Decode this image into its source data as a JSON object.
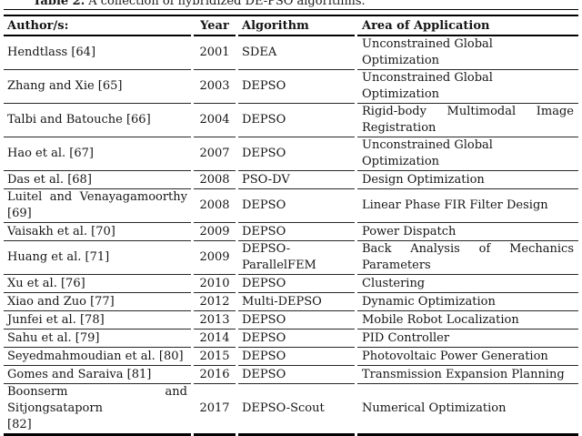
{
  "caption": {
    "label": "Table 2.",
    "text": "A collection of hybridized DE-PSO algorithms."
  },
  "table": {
    "headers": [
      "Author/s:",
      "Year",
      "Algorithm",
      "Area of Application"
    ],
    "rows": [
      {
        "author": [
          "Hendtlass [64]"
        ],
        "year": "2001",
        "algorithm": [
          "SDEA"
        ],
        "area": [
          "Unconstrained Global Optimization"
        ]
      },
      {
        "author": [
          "Zhang and Xie [65]"
        ],
        "year": "2003",
        "algorithm": [
          "DEPSO"
        ],
        "area": [
          "Unconstrained Global Optimization"
        ]
      },
      {
        "author": [
          "Talbi and Batouche [66]"
        ],
        "year": "2004",
        "algorithm": [
          "DEPSO"
        ],
        "area": [
          "Rigid-body Multimodal Image",
          "Registration"
        ]
      },
      {
        "author": [
          "Hao et al. [67]"
        ],
        "year": "2007",
        "algorithm": [
          "DEPSO"
        ],
        "area": [
          "Unconstrained Global Optimization"
        ]
      },
      {
        "author": [
          "Das et al. [68]"
        ],
        "year": "2008",
        "algorithm": [
          "PSO-DV"
        ],
        "area": [
          "Design Optimization"
        ]
      },
      {
        "author": [
          "Luitel and Venayagamoorthy",
          "[69]"
        ],
        "year": "2008",
        "algorithm": [
          "DEPSO"
        ],
        "area": [
          "Linear Phase FIR Filter Design"
        ]
      },
      {
        "author": [
          "Vaisakh et al. [70]"
        ],
        "year": "2009",
        "algorithm": [
          "DEPSO"
        ],
        "area": [
          "Power Dispatch"
        ]
      },
      {
        "author": [
          "Huang et al. [71]"
        ],
        "year": "2009",
        "algorithm": [
          "DEPSO-",
          "ParallelFEM"
        ],
        "area": [
          "Back Analysis of Mechanics",
          "Parameters"
        ]
      },
      {
        "author": [
          "Xu et al. [76]"
        ],
        "year": "2010",
        "algorithm": [
          "DEPSO"
        ],
        "area": [
          "Clustering"
        ]
      },
      {
        "author": [
          "Xiao and Zuo [77]"
        ],
        "year": "2012",
        "algorithm": [
          "Multi-DEPSO"
        ],
        "area": [
          "Dynamic Optimization"
        ]
      },
      {
        "author": [
          "Junfei et al. [78]"
        ],
        "year": "2013",
        "algorithm": [
          "DEPSO"
        ],
        "area": [
          "Mobile Robot Localization"
        ]
      },
      {
        "author": [
          "Sahu et al. [79]"
        ],
        "year": "2014",
        "algorithm": [
          "DEPSO"
        ],
        "area": [
          "PID Controller"
        ]
      },
      {
        "author": [
          "Seyedmahmoudian et al. [80]"
        ],
        "year": "2015",
        "algorithm": [
          "DEPSO"
        ],
        "area": [
          "Photovoltaic Power Generation"
        ]
      },
      {
        "author": [
          "Gomes and Saraiva [81]"
        ],
        "year": "2016",
        "algorithm": [
          "DEPSO"
        ],
        "area": [
          "Transmission Expansion Planning"
        ]
      },
      {
        "author": [
          "Boonserm and Sitjongsataporn",
          "[82]"
        ],
        "year": "2017",
        "algorithm": [
          "DEPSO-Scout"
        ],
        "area": [
          "Numerical Optimization"
        ]
      }
    ]
  },
  "colors": {
    "text": "#1a1a1a",
    "rules": "#000000",
    "background": "#ffffff"
  }
}
